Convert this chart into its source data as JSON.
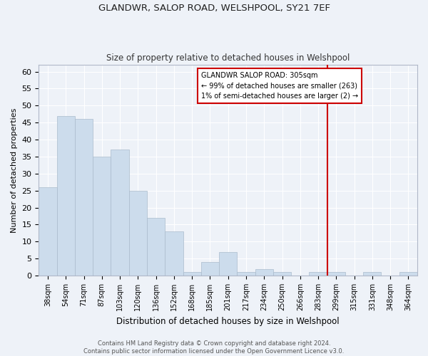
{
  "title": "GLANDWR, SALOP ROAD, WELSHPOOL, SY21 7EF",
  "subtitle": "Size of property relative to detached houses in Welshpool",
  "xlabel": "Distribution of detached houses by size in Welshpool",
  "ylabel": "Number of detached properties",
  "bar_color": "#ccdcec",
  "bar_edge_color": "#aabbcc",
  "background_color": "#eef2f8",
  "fig_background_color": "#eef2f8",
  "grid_color": "#ffffff",
  "categories": [
    "38sqm",
    "54sqm",
    "71sqm",
    "87sqm",
    "103sqm",
    "120sqm",
    "136sqm",
    "152sqm",
    "168sqm",
    "185sqm",
    "201sqm",
    "217sqm",
    "234sqm",
    "250sqm",
    "266sqm",
    "283sqm",
    "299sqm",
    "315sqm",
    "331sqm",
    "348sqm",
    "364sqm"
  ],
  "values": [
    26,
    47,
    46,
    35,
    37,
    25,
    17,
    13,
    1,
    4,
    7,
    1,
    2,
    1,
    0,
    1,
    1,
    0,
    1,
    0,
    1
  ],
  "ylim": [
    0,
    62
  ],
  "yticks": [
    0,
    5,
    10,
    15,
    20,
    25,
    30,
    35,
    40,
    45,
    50,
    55,
    60
  ],
  "vline_index": 16,
  "vline_color": "#cc0000",
  "ann_text_line1": "GLANDWR SALOP ROAD: 305sqm",
  "ann_text_line2": "← 99% of detached houses are smaller (263)",
  "ann_text_line3": "1% of semi-detached houses are larger (2) →",
  "footer_line1": "Contains HM Land Registry data © Crown copyright and database right 2024.",
  "footer_line2": "Contains public sector information licensed under the Open Government Licence v3.0."
}
